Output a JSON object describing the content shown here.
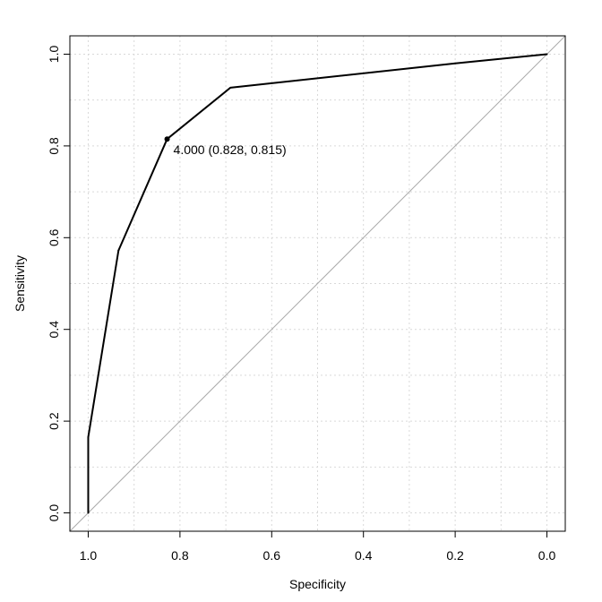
{
  "chart_data": {
    "type": "line",
    "title": "",
    "xlabel": "Specificity",
    "ylabel": "Sensitivity",
    "xlim": [
      1.04,
      -0.04
    ],
    "ylim": [
      -0.04,
      1.04
    ],
    "x_reversed": true,
    "x_ticks": [
      1.0,
      0.8,
      0.6,
      0.4,
      0.2,
      0.0
    ],
    "x_tick_labels": [
      "1.0",
      "0.8",
      "0.6",
      "0.4",
      "0.2",
      "0.0"
    ],
    "y_ticks": [
      0.0,
      0.2,
      0.4,
      0.6,
      0.8,
      1.0
    ],
    "y_tick_labels": [
      "0.0",
      "0.2",
      "0.4",
      "0.6",
      "0.8",
      "1.0"
    ],
    "grid": true,
    "grid_style": "dotted",
    "series": [
      {
        "x": [
          1.0,
          1.0,
          0.934,
          0.828,
          0.69,
          0.2,
          0.0
        ],
        "y": [
          0.0,
          0.165,
          0.572,
          0.815,
          0.927,
          0.98,
          1.0
        ],
        "color": "#000000"
      }
    ],
    "reference_line": {
      "from": [
        1.04,
        -0.04
      ],
      "to": [
        -0.04,
        1.04
      ],
      "color": "#aaaaaa"
    },
    "highlight_point": {
      "x": 0.828,
      "y": 0.815,
      "label": "4.000 (0.828, 0.815)"
    }
  }
}
